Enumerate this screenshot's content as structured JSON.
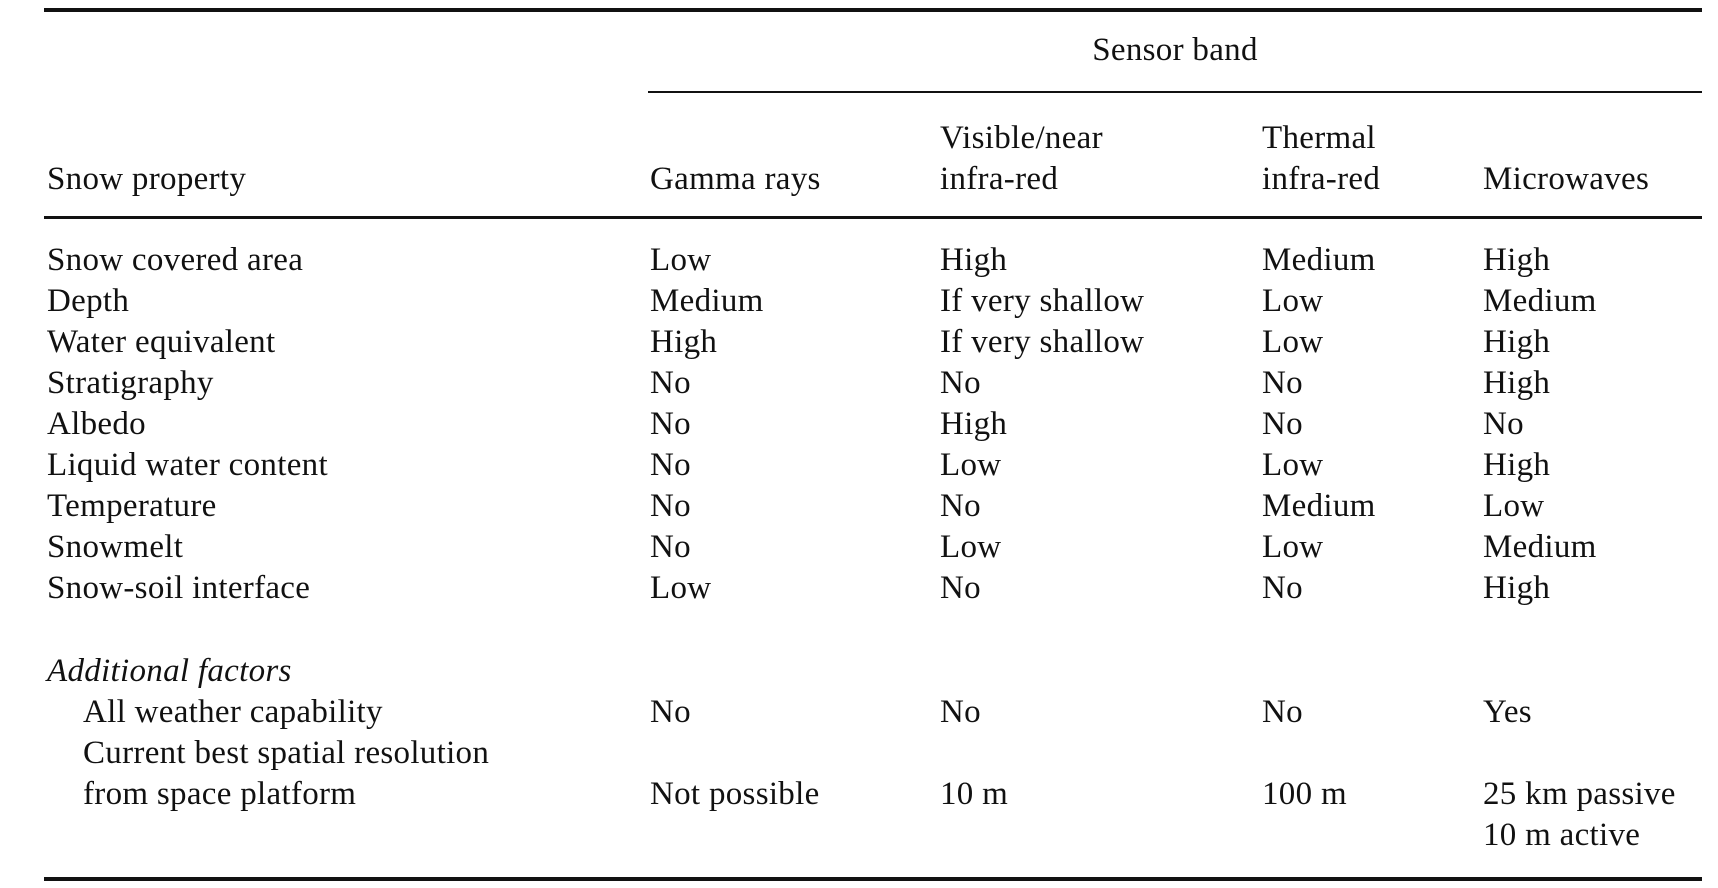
{
  "table": {
    "spanner": "Sensor band",
    "stub_header": "Snow property",
    "column_headers": [
      [
        "Gamma rays"
      ],
      [
        "Visible/near",
        "infra-red"
      ],
      [
        "Thermal",
        "infra-red"
      ],
      [
        "Microwaves"
      ]
    ],
    "rows": [
      {
        "property": "Snow covered area",
        "values": [
          "Low",
          "High",
          "Medium",
          "High"
        ]
      },
      {
        "property": "Depth",
        "values": [
          "Medium",
          "If very shallow",
          "Low",
          "Medium"
        ]
      },
      {
        "property": "Water equivalent",
        "values": [
          "High",
          "If very shallow",
          "Low",
          "High"
        ]
      },
      {
        "property": "Stratigraphy",
        "values": [
          "No",
          "No",
          "No",
          "High"
        ]
      },
      {
        "property": "Albedo",
        "values": [
          "No",
          "High",
          "No",
          "No"
        ]
      },
      {
        "property": "Liquid water content",
        "values": [
          "No",
          "Low",
          "Low",
          "High"
        ]
      },
      {
        "property": "Temperature",
        "values": [
          "No",
          "No",
          "Medium",
          "Low"
        ]
      },
      {
        "property": "Snowmelt",
        "values": [
          "No",
          "Low",
          "Low",
          "Medium"
        ]
      },
      {
        "property": "Snow-soil interface",
        "values": [
          "Low",
          "No",
          "No",
          "High"
        ]
      }
    ],
    "additional_factors_label": "Additional factors",
    "additional_rows": [
      {
        "property": [
          "All weather capability"
        ],
        "values": [
          [
            "No"
          ],
          [
            "No"
          ],
          [
            "No"
          ],
          [
            "Yes"
          ]
        ]
      },
      {
        "property": [
          "Current best spatial resolution",
          "from space platform"
        ],
        "values": [
          [
            "Not possible"
          ],
          [
            "10 m"
          ],
          [
            "100 m"
          ],
          [
            "25 km passive",
            "10 m active"
          ]
        ]
      }
    ]
  }
}
